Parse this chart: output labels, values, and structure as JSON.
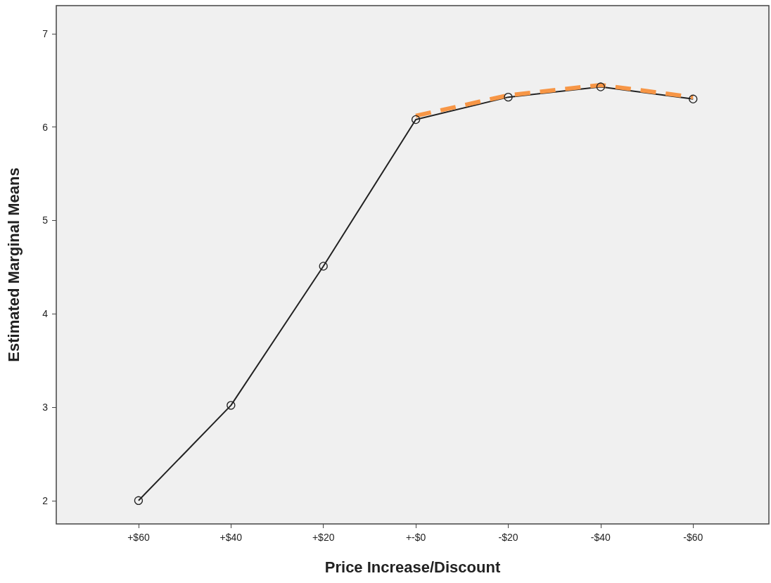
{
  "chart_data": {
    "type": "line",
    "xlabel": "Price Increase/Discount",
    "ylabel": "Estimated Marginal Means",
    "categories": [
      "+$60",
      "+$40",
      "+$20",
      "+-$0",
      "-$20",
      "-$40",
      "-$60"
    ],
    "series": [
      {
        "color": "#222222",
        "marker": "circle",
        "line_style": "solid",
        "values": [
          2.0,
          3.02,
          4.51,
          6.08,
          6.32,
          6.43,
          6.3
        ]
      },
      {
        "color": "#f79646",
        "marker": "none",
        "line_style": "dashed",
        "values": [
          null,
          null,
          null,
          6.12,
          6.34,
          6.45,
          6.32
        ]
      }
    ],
    "ylim": [
      1.75,
      7.3
    ],
    "yticks": [
      2,
      3,
      4,
      5,
      6,
      7
    ],
    "grid": false
  }
}
